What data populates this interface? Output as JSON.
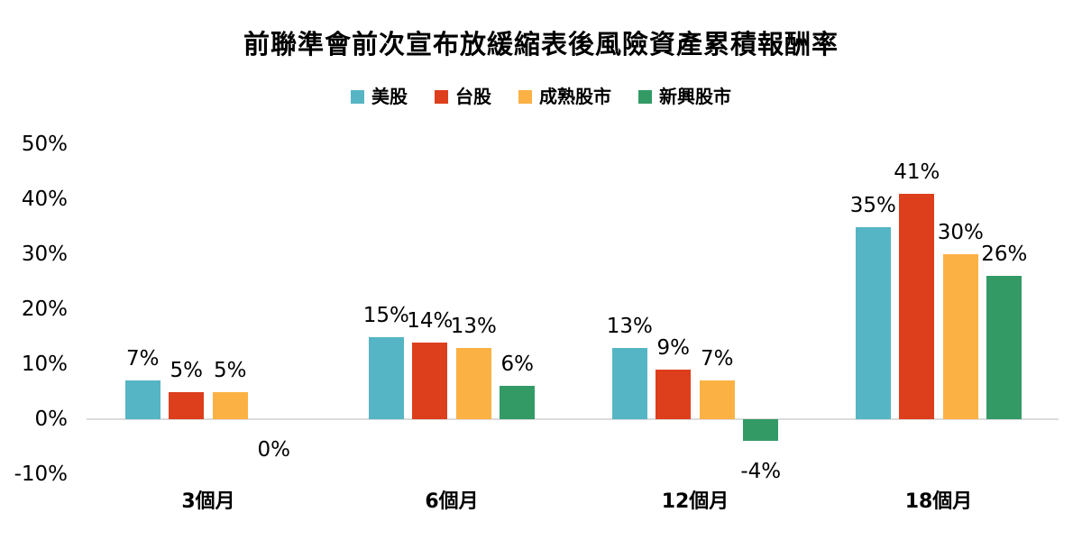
{
  "chart_data": {
    "type": "bar",
    "title": "前聯準會前次宣布放緩縮表後風險資產累積報酬率",
    "categories": [
      "3個月",
      "6個月",
      "12個月",
      "18個月"
    ],
    "series": [
      {
        "name": "美股",
        "color": "#56B5C4",
        "values": [
          7,
          15,
          13,
          35
        ]
      },
      {
        "name": "台股",
        "color": "#DD3E1C",
        "values": [
          5,
          14,
          9,
          41
        ]
      },
      {
        "name": "成熟股市",
        "color": "#FCB144",
        "values": [
          5,
          13,
          7,
          30
        ]
      },
      {
        "name": "新興股市",
        "color": "#339A66",
        "values": [
          0,
          6,
          -4,
          26
        ]
      }
    ],
    "data_label_format": "percent",
    "data_labels": true,
    "y_ticks": [
      "50%",
      "40%",
      "30%",
      "20%",
      "10%",
      "0%",
      "-10%"
    ],
    "ylim": [
      -10,
      50
    ],
    "xlabel": "",
    "ylabel": "",
    "grid": false,
    "legend_position": "top",
    "baseline_color": "#DBDBDB",
    "text_color": "#000000",
    "background_color": "#FFFFFF"
  }
}
